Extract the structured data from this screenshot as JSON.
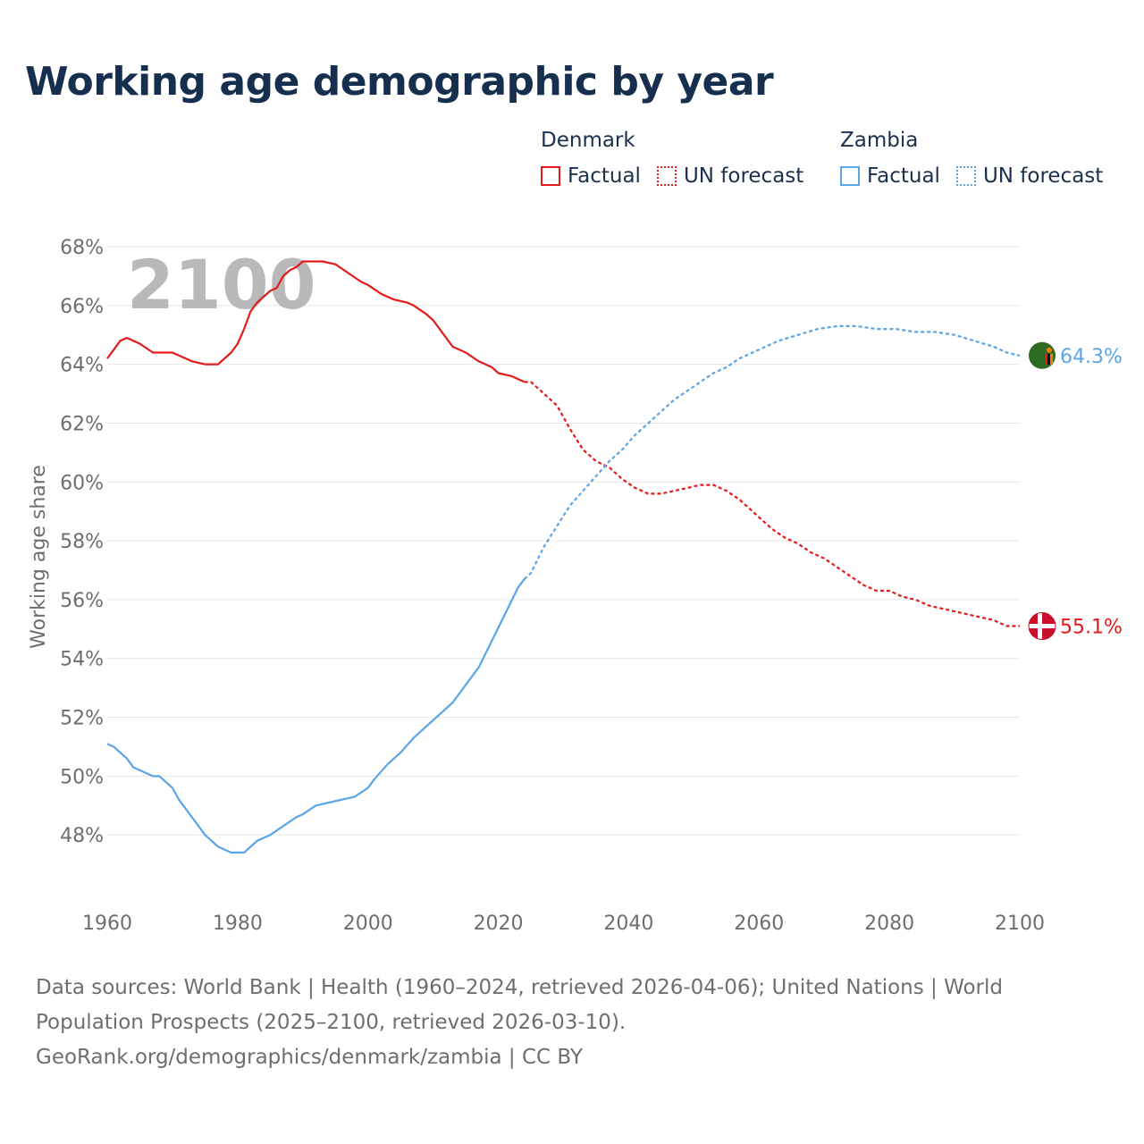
{
  "title": "Working age demographic by year",
  "legend": {
    "groups": [
      {
        "country": "Denmark",
        "factual_label": "Factual",
        "forecast_label": "UN forecast",
        "color": "#e31a1c"
      },
      {
        "country": "Zambia",
        "factual_label": "Factual",
        "forecast_label": "UN forecast",
        "color": "#5aa5e6"
      }
    ]
  },
  "year_display": "2100",
  "footer": {
    "sources": "Data sources: World Bank | Health (1960–2024, retrieved 2026-04-06); United Nations | World Population Prospects (2025–2100, retrieved 2026-03-10).",
    "link": "GeoRank.org/demographics/denmark/zambia | CC BY"
  },
  "chart_data": {
    "type": "line",
    "title": "Working age demographic by year",
    "xlabel": "",
    "ylabel": "Working age share",
    "xlim": [
      1960,
      2100
    ],
    "ylim": [
      46,
      68
    ],
    "xticks": [
      1960,
      1980,
      2000,
      2020,
      2040,
      2060,
      2080,
      2100
    ],
    "yticks": [
      48,
      50,
      52,
      54,
      56,
      58,
      60,
      62,
      64,
      66,
      68
    ],
    "ytick_suffix": "%",
    "factual_end_year": 2024,
    "grid": true,
    "series": [
      {
        "name": "Denmark",
        "color": "#e31a1c",
        "end_label": "55.1%",
        "x": [
          1960,
          1962,
          1963,
          1965,
          1967,
          1968,
          1970,
          1971,
          1973,
          1975,
          1977,
          1979,
          1980,
          1981,
          1982,
          1983,
          1985,
          1986,
          1987,
          1988,
          1989,
          1990,
          1991,
          1993,
          1995,
          1997,
          1999,
          2000,
          2002,
          2004,
          2006,
          2007,
          2009,
          2010,
          2012,
          2013,
          2015,
          2017,
          2019,
          2020,
          2022,
          2024,
          2025,
          2027,
          2029,
          2031,
          2033,
          2035,
          2037,
          2039,
          2041,
          2043,
          2045,
          2047,
          2049,
          2051,
          2053,
          2055,
          2057,
          2060,
          2062,
          2064,
          2066,
          2068,
          2070,
          2072,
          2074,
          2076,
          2078,
          2080,
          2082,
          2084,
          2086,
          2088,
          2090,
          2092,
          2094,
          2096,
          2098,
          2100
        ],
        "y": [
          64.2,
          64.8,
          64.9,
          64.7,
          64.4,
          64.4,
          64.4,
          64.3,
          64.1,
          64.0,
          64.0,
          64.4,
          64.7,
          65.2,
          65.8,
          66.1,
          66.5,
          66.6,
          67.0,
          67.2,
          67.3,
          67.5,
          67.5,
          67.5,
          67.4,
          67.1,
          66.8,
          66.7,
          66.4,
          66.2,
          66.1,
          66.0,
          65.7,
          65.5,
          64.9,
          64.6,
          64.4,
          64.1,
          63.9,
          63.7,
          63.6,
          63.4,
          63.4,
          63.0,
          62.6,
          61.8,
          61.1,
          60.7,
          60.5,
          60.1,
          59.8,
          59.6,
          59.6,
          59.7,
          59.8,
          59.9,
          59.9,
          59.7,
          59.4,
          58.8,
          58.4,
          58.1,
          57.9,
          57.6,
          57.4,
          57.1,
          56.8,
          56.5,
          56.3,
          56.3,
          56.1,
          56.0,
          55.8,
          55.7,
          55.6,
          55.5,
          55.4,
          55.3,
          55.1,
          55.1
        ]
      },
      {
        "name": "Zambia",
        "color": "#5aa5e6",
        "end_label": "64.3%",
        "x": [
          1960,
          1961,
          1963,
          1964,
          1966,
          1967,
          1968,
          1970,
          1971,
          1973,
          1975,
          1977,
          1979,
          1980,
          1981,
          1983,
          1985,
          1987,
          1989,
          1990,
          1992,
          1994,
          1996,
          1998,
          2000,
          2001,
          2003,
          2005,
          2007,
          2009,
          2011,
          2013,
          2015,
          2017,
          2019,
          2021,
          2023,
          2024,
          2025,
          2027,
          2029,
          2031,
          2033,
          2035,
          2037,
          2039,
          2041,
          2043,
          2045,
          2047,
          2049,
          2051,
          2053,
          2055,
          2057,
          2060,
          2063,
          2066,
          2069,
          2072,
          2075,
          2078,
          2081,
          2084,
          2087,
          2090,
          2093,
          2096,
          2098,
          2100
        ],
        "y": [
          51.1,
          51.0,
          50.6,
          50.3,
          50.1,
          50.0,
          50.0,
          49.6,
          49.2,
          48.6,
          48.0,
          47.6,
          47.4,
          47.4,
          47.4,
          47.8,
          48.0,
          48.3,
          48.6,
          48.7,
          49.0,
          49.1,
          49.2,
          49.3,
          49.6,
          49.9,
          50.4,
          50.8,
          51.3,
          51.7,
          52.1,
          52.5,
          53.1,
          53.7,
          54.6,
          55.5,
          56.4,
          56.7,
          56.9,
          57.8,
          58.5,
          59.2,
          59.7,
          60.2,
          60.7,
          61.1,
          61.6,
          62.0,
          62.4,
          62.8,
          63.1,
          63.4,
          63.7,
          63.9,
          64.2,
          64.5,
          64.8,
          65.0,
          65.2,
          65.3,
          65.3,
          65.2,
          65.2,
          65.1,
          65.1,
          65.0,
          64.8,
          64.6,
          64.4,
          64.3
        ]
      }
    ]
  }
}
